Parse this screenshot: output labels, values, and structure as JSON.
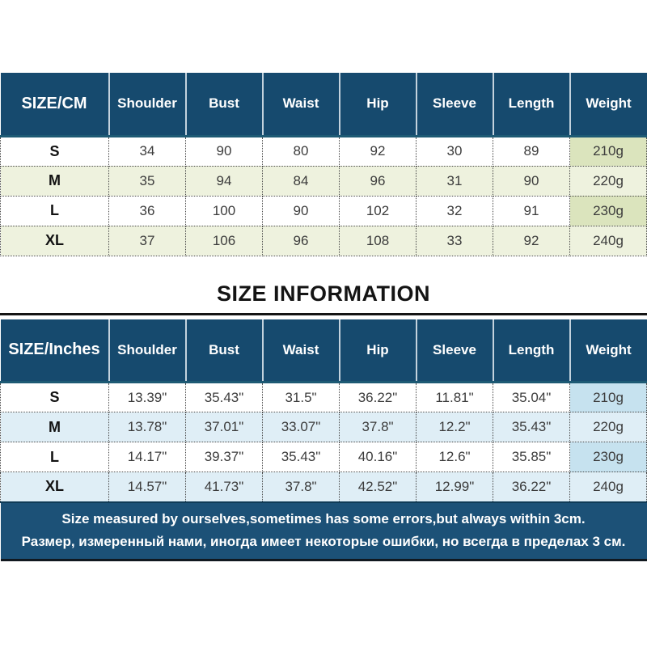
{
  "title": "SIZE INFORMATION",
  "colors": {
    "header_navy": "#164a6e",
    "footer_navy": "#1c5177",
    "cm_row_stripe_green": "#eef2de",
    "cm_weight_green": "#dbe4bd",
    "inch_row_stripe_blue": "#dfeef6",
    "inch_weight_blue": "#c6e2ef",
    "divider_black": "#141414"
  },
  "cm_table": {
    "headers": [
      "SIZE/CM",
      "Shoulder",
      "Bust",
      "Waist",
      "Hip",
      "Sleeve",
      "Length",
      "Weight"
    ],
    "rows": [
      {
        "size": "S",
        "values": [
          "34",
          "90",
          "80",
          "92",
          "30",
          "89"
        ],
        "weight": "210g"
      },
      {
        "size": "M",
        "values": [
          "35",
          "94",
          "84",
          "96",
          "31",
          "90"
        ],
        "weight": "220g"
      },
      {
        "size": "L",
        "values": [
          "36",
          "100",
          "90",
          "102",
          "32",
          "91"
        ],
        "weight": "230g"
      },
      {
        "size": "XL",
        "values": [
          "37",
          "106",
          "96",
          "108",
          "33",
          "92"
        ],
        "weight": "240g"
      }
    ]
  },
  "inches_table": {
    "headers": [
      "SIZE/Inches",
      "Shoulder",
      "Bust",
      "Waist",
      "Hip",
      "Sleeve",
      "Length",
      "Weight"
    ],
    "rows": [
      {
        "size": "S",
        "values": [
          "13.39\"",
          "35.43\"",
          "31.5\"",
          "36.22\"",
          "11.81\"",
          "35.04\""
        ],
        "weight": "210g"
      },
      {
        "size": "M",
        "values": [
          "13.78\"",
          "37.01\"",
          "33.07\"",
          "37.8\"",
          "12.2\"",
          "35.43\""
        ],
        "weight": "220g"
      },
      {
        "size": "L",
        "values": [
          "14.17\"",
          "39.37\"",
          "35.43\"",
          "40.16\"",
          "12.6\"",
          "35.85\""
        ],
        "weight": "230g"
      },
      {
        "size": "XL",
        "values": [
          "14.57\"",
          "41.73\"",
          "37.8\"",
          "42.52\"",
          "12.99\"",
          "36.22\""
        ],
        "weight": "240g"
      }
    ]
  },
  "note": {
    "en": "Size measured by ourselves,sometimes has some errors,but always within 3cm.",
    "ru": "Размер, измеренный нами, иногда имеет некоторые ошибки, но всегда в пределах 3 см."
  }
}
